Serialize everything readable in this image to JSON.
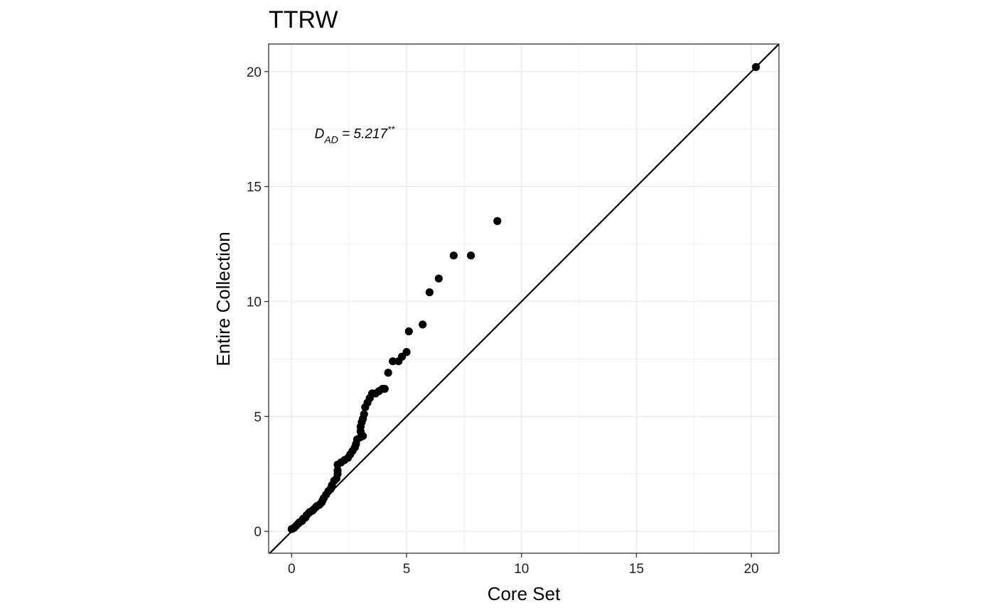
{
  "chart_data": {
    "type": "scatter",
    "title": "TTRW",
    "xlabel": "Core Set",
    "ylabel": "Entire Collection",
    "xlim": [
      -1,
      21.2
    ],
    "ylim": [
      -0.95,
      21.2
    ],
    "xticks": [
      0,
      5,
      10,
      15,
      20
    ],
    "yticks": [
      0,
      5,
      10,
      15,
      20
    ],
    "xtick_labels": [
      "0",
      "5",
      "10",
      "15",
      "20"
    ],
    "ytick_labels": [
      "0",
      "5",
      "10",
      "15",
      "20"
    ],
    "grid": true,
    "reference_line": "y = x",
    "annotation": {
      "base": "D",
      "subscript": "AD",
      "text": " = 5.217",
      "superscript": "**",
      "x": 1.0,
      "y": 17.1
    },
    "points": [
      [
        0.0,
        0.1
      ],
      [
        0.1,
        0.15
      ],
      [
        0.2,
        0.25
      ],
      [
        0.3,
        0.35
      ],
      [
        0.35,
        0.4
      ],
      [
        0.45,
        0.45
      ],
      [
        0.5,
        0.55
      ],
      [
        0.6,
        0.6
      ],
      [
        0.65,
        0.7
      ],
      [
        0.75,
        0.8
      ],
      [
        0.8,
        0.85
      ],
      [
        0.9,
        0.9
      ],
      [
        0.95,
        0.95
      ],
      [
        1.05,
        1.05
      ],
      [
        1.1,
        1.1
      ],
      [
        1.2,
        1.15
      ],
      [
        1.3,
        1.25
      ],
      [
        1.35,
        1.35
      ],
      [
        1.4,
        1.45
      ],
      [
        1.5,
        1.6
      ],
      [
        1.6,
        1.75
      ],
      [
        1.7,
        1.85
      ],
      [
        1.75,
        2.0
      ],
      [
        1.85,
        2.2
      ],
      [
        1.95,
        2.3
      ],
      [
        2.0,
        2.5
      ],
      [
        2.0,
        2.65
      ],
      [
        2.0,
        2.9
      ],
      [
        2.15,
        3.0
      ],
      [
        2.3,
        3.1
      ],
      [
        2.45,
        3.2
      ],
      [
        2.55,
        3.35
      ],
      [
        2.65,
        3.5
      ],
      [
        2.75,
        3.65
      ],
      [
        2.8,
        3.8
      ],
      [
        2.85,
        4.0
      ],
      [
        3.0,
        4.1
      ],
      [
        3.1,
        4.15
      ],
      [
        3.0,
        4.35
      ],
      [
        3.0,
        4.55
      ],
      [
        3.05,
        4.75
      ],
      [
        3.1,
        4.9
      ],
      [
        3.15,
        5.1
      ],
      [
        3.2,
        5.4
      ],
      [
        3.3,
        5.6
      ],
      [
        3.4,
        5.8
      ],
      [
        3.5,
        6.0
      ],
      [
        3.65,
        6.0
      ],
      [
        3.8,
        6.1
      ],
      [
        3.95,
        6.2
      ],
      [
        4.05,
        6.2
      ],
      [
        4.2,
        6.9
      ],
      [
        4.4,
        7.4
      ],
      [
        4.65,
        7.4
      ],
      [
        4.8,
        7.6
      ],
      [
        5.0,
        7.8
      ],
      [
        5.1,
        8.7
      ],
      [
        5.7,
        9.0
      ],
      [
        6.0,
        10.4
      ],
      [
        6.4,
        11.0
      ],
      [
        7.05,
        12.0
      ],
      [
        7.8,
        12.0
      ],
      [
        8.95,
        13.5
      ],
      [
        20.2,
        20.2
      ]
    ]
  }
}
